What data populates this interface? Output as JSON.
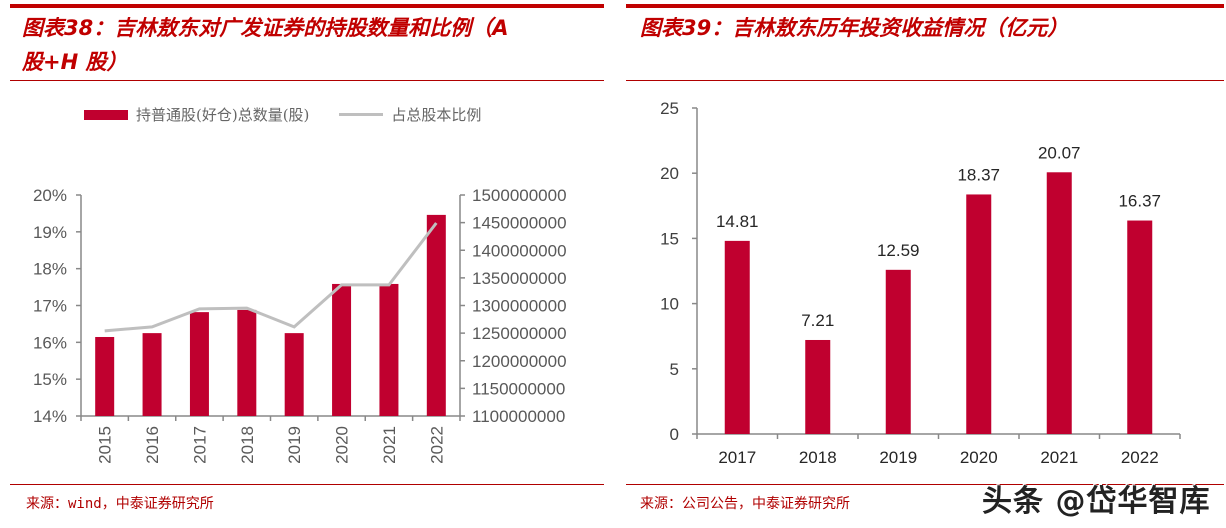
{
  "left": {
    "title_line1": "图表38：吉林敖东对广发证券的持股数量和比例（A",
    "title_line2": "股+H 股）",
    "legend": {
      "bar_label": "持普通股(好仓)总数量(股)",
      "line_label": "占总股本比例"
    },
    "source": "来源：wind，中泰证券研究所"
  },
  "right": {
    "title": "图表39：吉林敖东历年投资收益情况（亿元）",
    "source": "来源：公司公告，中泰证券研究所",
    "watermark": "头条 @岱华智库"
  },
  "colors": {
    "title_red": "#c00000",
    "bar_red": "#c0002f",
    "line_gray": "#bfbfbf",
    "axis_gray": "#888888"
  },
  "chart_data": [
    {
      "type": "bar+line",
      "title": "图表38：吉林敖东对广发证券的持股数量和比例（A股+H 股）",
      "categories": [
        "2015",
        "2016",
        "2017",
        "2018",
        "2019",
        "2020",
        "2021",
        "2022"
      ],
      "series": [
        {
          "name": "持普通股(好仓)总数量(股)",
          "type": "bar",
          "axis": "right",
          "values": [
            1243000000,
            1250000000,
            1288000000,
            1292000000,
            1250000000,
            1339000000,
            1339000000,
            1464000000
          ]
        },
        {
          "name": "占总股本比例",
          "type": "line",
          "axis": "left",
          "values": [
            16.31,
            16.42,
            16.91,
            16.93,
            16.42,
            17.56,
            17.56,
            19.24
          ]
        }
      ],
      "y_left": {
        "ticks": [
          "14%",
          "15%",
          "16%",
          "17%",
          "18%",
          "19%",
          "20%"
        ],
        "range": [
          14,
          20
        ]
      },
      "y_right": {
        "ticks": [
          "1100000000",
          "1150000000",
          "1200000000",
          "1250000000",
          "1300000000",
          "1350000000",
          "1400000000",
          "1450000000",
          "1500000000"
        ],
        "range": [
          1100000000,
          1500000000
        ]
      },
      "xlabel": "",
      "grid": false,
      "legend_position": "top"
    },
    {
      "type": "bar",
      "title": "图表39：吉林敖东历年投资收益情况（亿元）",
      "categories": [
        "2017",
        "2018",
        "2019",
        "2020",
        "2021",
        "2022"
      ],
      "values": [
        14.81,
        7.21,
        12.59,
        18.37,
        20.07,
        16.37
      ],
      "value_labels": [
        "14.81",
        "7.21",
        "12.59",
        "18.37",
        "20.07",
        "16.37"
      ],
      "y_ticks": [
        "0",
        "5",
        "10",
        "15",
        "20",
        "25"
      ],
      "ylim": [
        0,
        25
      ],
      "xlabel": "",
      "ylabel": "亿元",
      "grid": false
    }
  ]
}
